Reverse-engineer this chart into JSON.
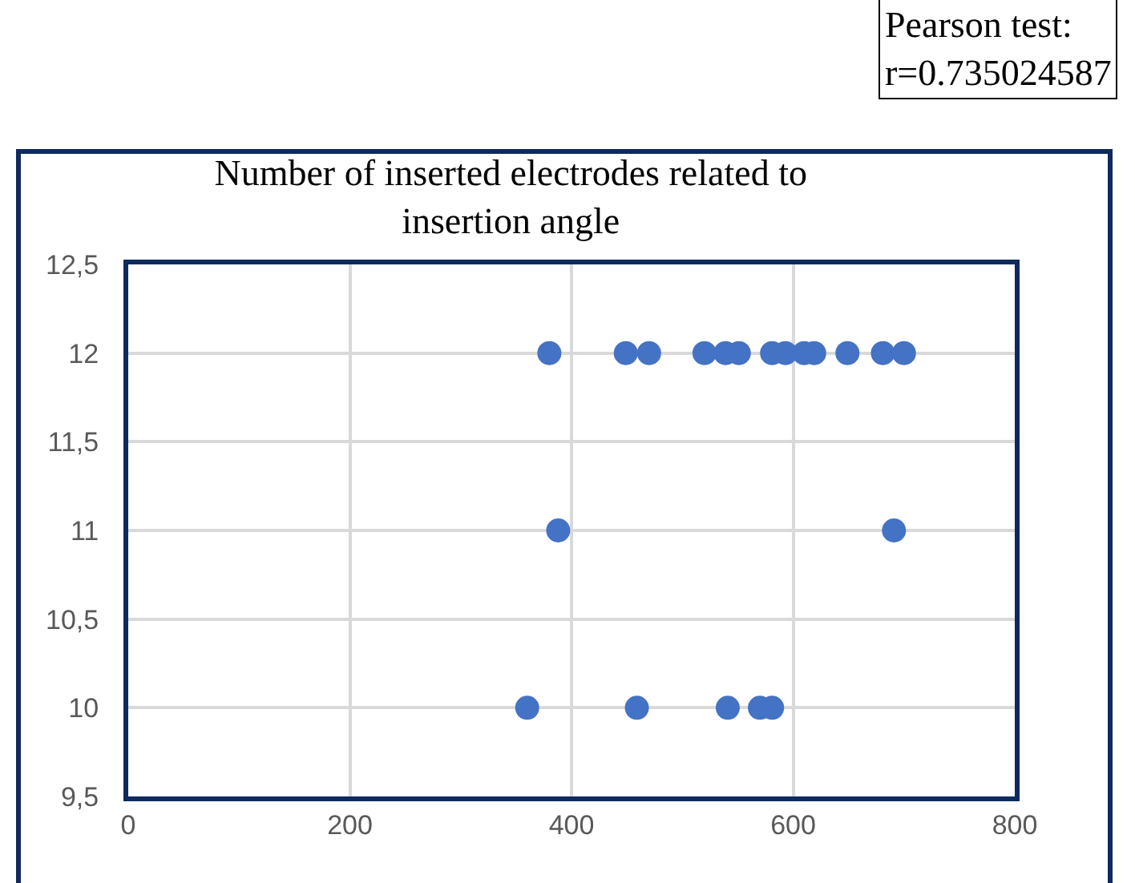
{
  "chart_data": {
    "type": "scatter",
    "title": "Number of inserted electrodes related to insertion angle",
    "annotations": [
      "Pearson test: r=0.735024587"
    ],
    "x": [
      380,
      449,
      470,
      520,
      539,
      551,
      581,
      593,
      610,
      619,
      649,
      681,
      700,
      388,
      691,
      360,
      459,
      541,
      570,
      581
    ],
    "values": [
      12,
      12,
      12,
      12,
      12,
      12,
      12,
      12,
      12,
      12,
      12,
      12,
      12,
      11,
      11,
      10,
      10,
      10,
      10,
      10
    ],
    "color": "#4472c4",
    "marker": "circle",
    "xlim": [
      0,
      800
    ],
    "xticks": [
      0,
      200,
      400,
      600,
      800
    ],
    "ylim": [
      9.5,
      12.5
    ],
    "yticks": [
      {
        "value": 9.5,
        "label": "9,5"
      },
      {
        "value": 10,
        "label": "10"
      },
      {
        "value": 10.5,
        "label": "10,5"
      },
      {
        "value": 11,
        "label": "11"
      },
      {
        "value": 11.5,
        "label": "11,5"
      },
      {
        "value": 12,
        "label": "12"
      },
      {
        "value": 12.5,
        "label": "12,5"
      }
    ],
    "grid": true
  }
}
